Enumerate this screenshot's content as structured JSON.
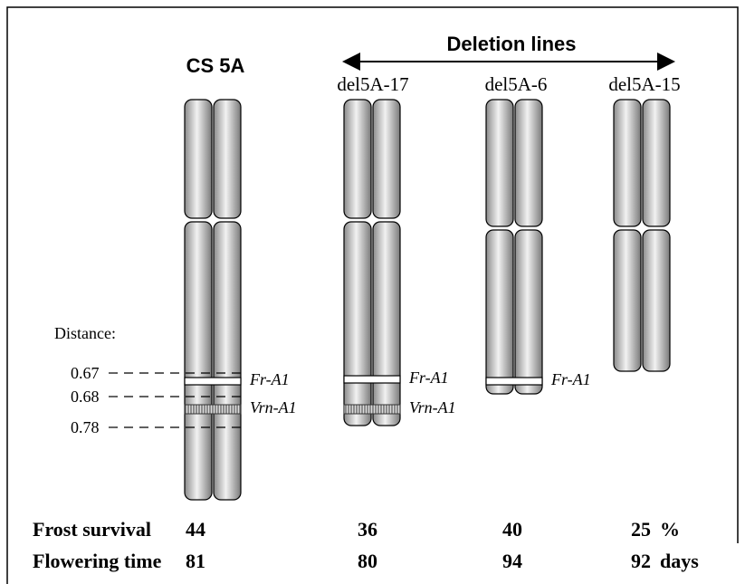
{
  "header": {
    "group_label": "Deletion lines"
  },
  "chromosomes": [
    {
      "label": "CS 5A",
      "genes": [
        "Fr-A1",
        "Vrn-A1"
      ]
    },
    {
      "label": "del5A-17",
      "genes": [
        "Fr-A1",
        "Vrn-A1"
      ]
    },
    {
      "label": "del5A-6",
      "genes": [
        "Fr-A1"
      ]
    },
    {
      "label": "del5A-15",
      "genes": []
    }
  ],
  "distance": {
    "label": "Distance:",
    "marks": [
      0.67,
      0.68,
      0.78
    ]
  },
  "traits": [
    {
      "label": "Frost survival",
      "values": [
        44,
        36,
        40,
        25
      ],
      "unit": "%"
    },
    {
      "label": "Flowering time",
      "values": [
        81,
        80,
        94,
        92
      ],
      "unit": "days"
    }
  ]
}
